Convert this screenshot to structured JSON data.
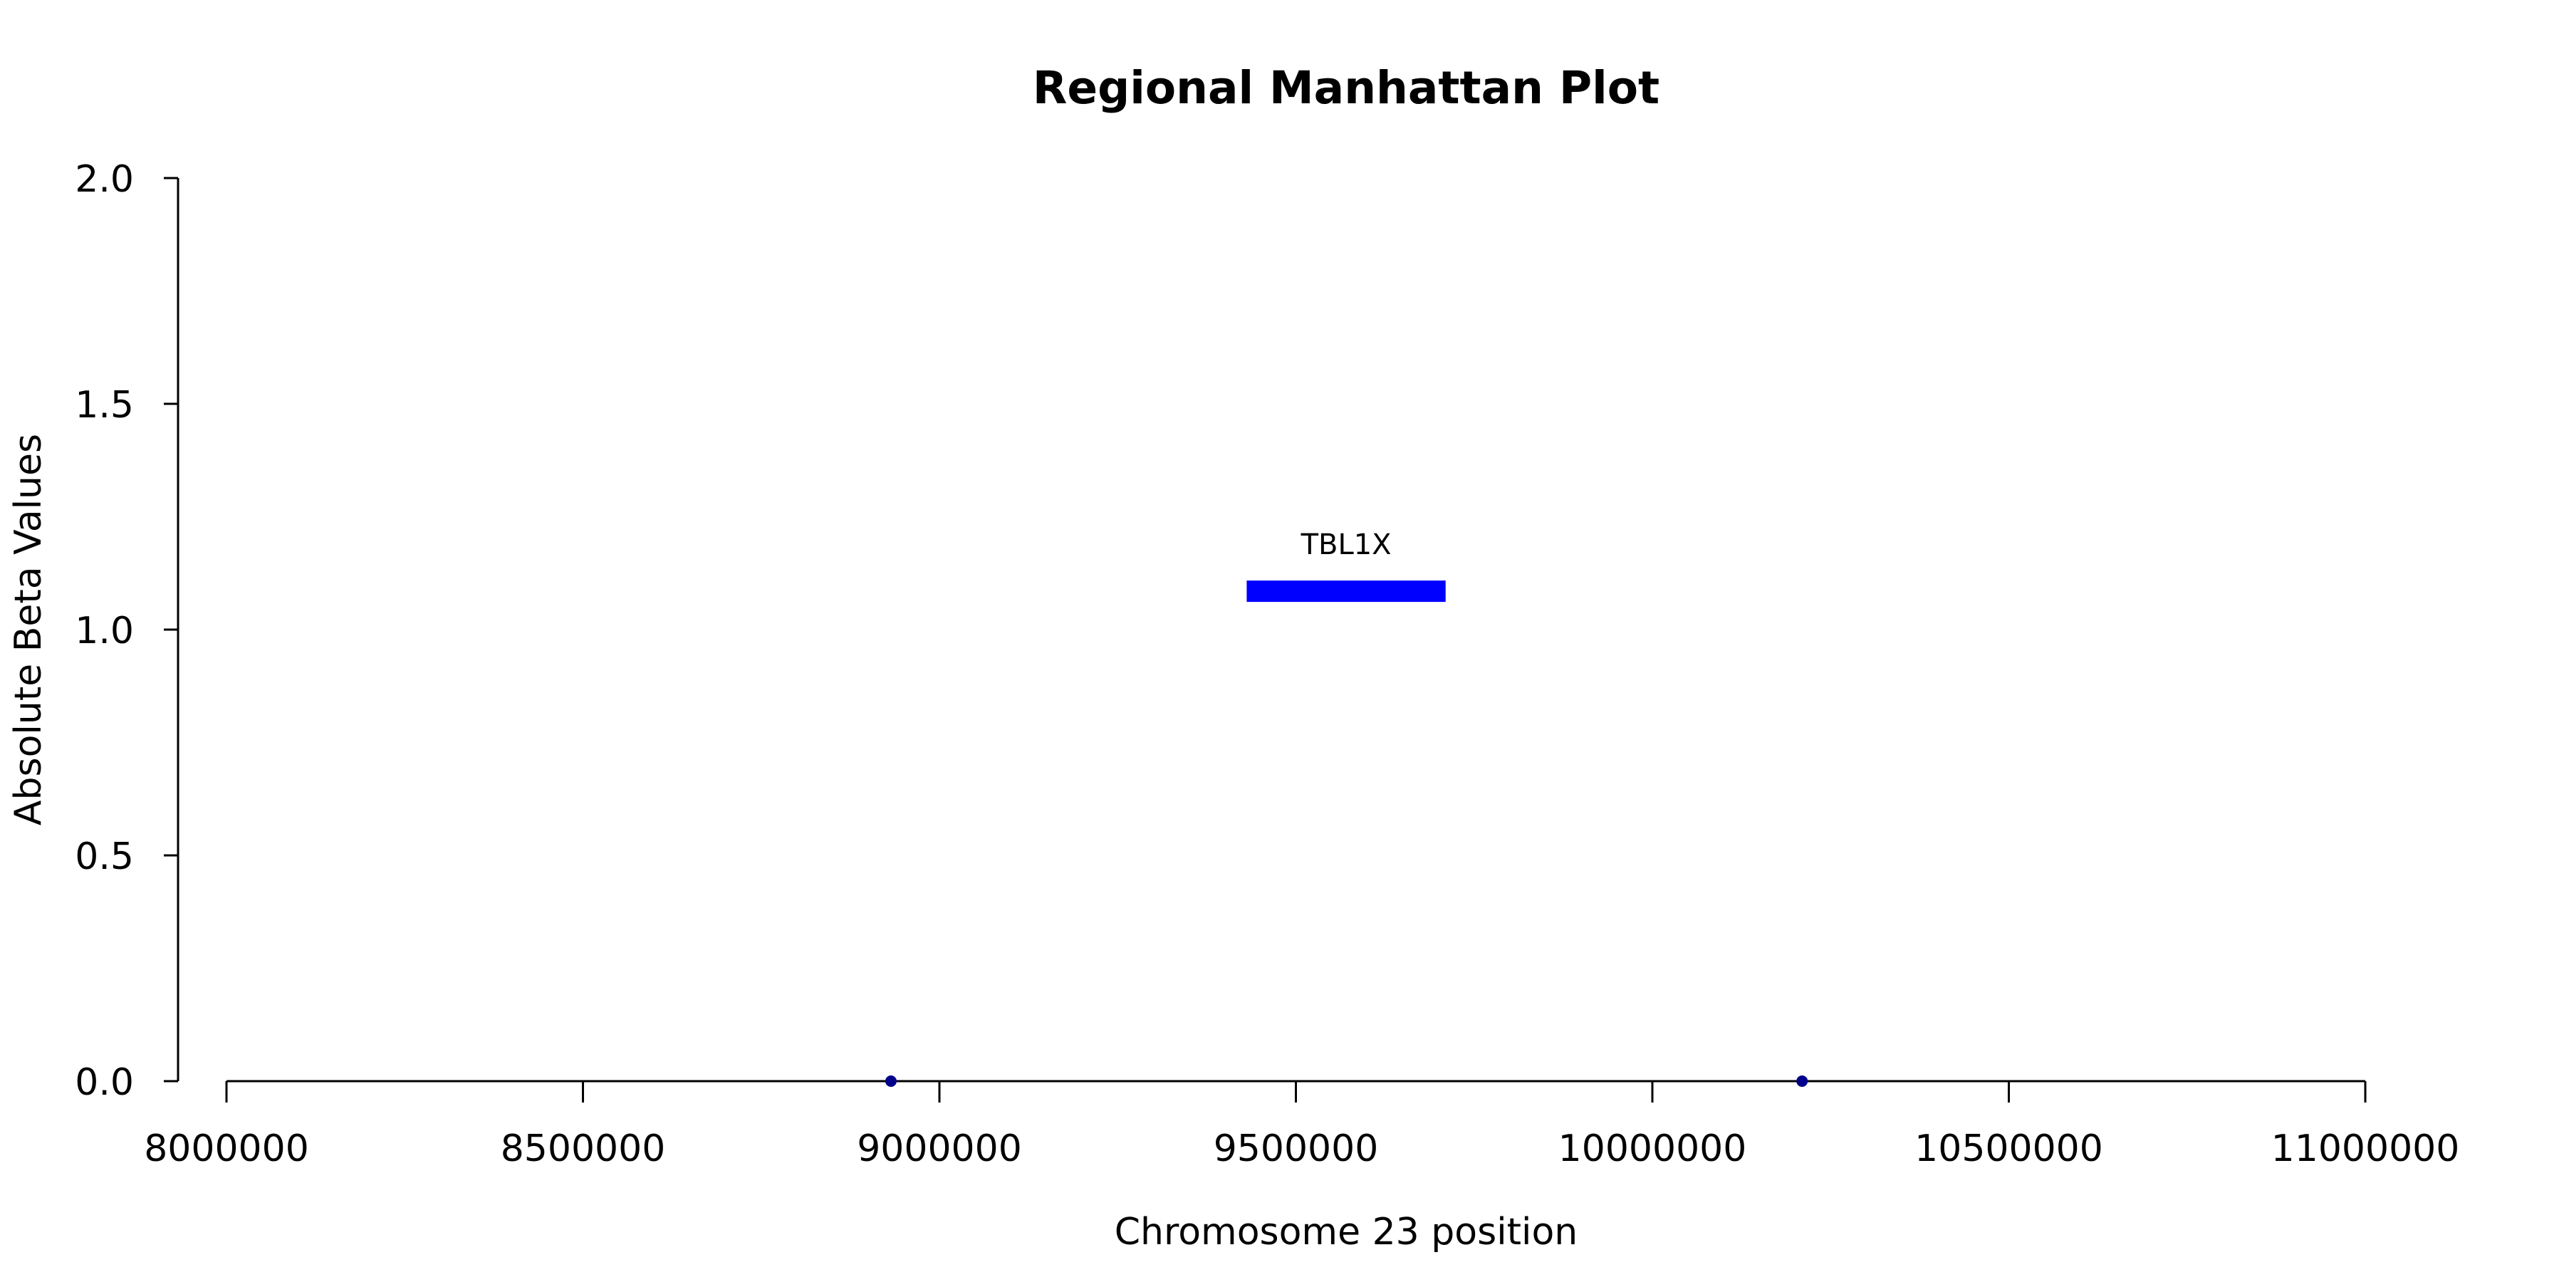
{
  "chart_data": {
    "type": "scatter",
    "title": "Regional Manhattan Plot",
    "xlabel": "Chromosome 23 position",
    "ylabel": "Absolute Beta Values",
    "xlim": [
      8000000,
      11000000
    ],
    "ylim": [
      0,
      2
    ],
    "xticks": [
      8000000,
      8500000,
      9000000,
      9500000,
      10000000,
      10500000,
      11000000
    ],
    "xtick_labels": [
      "8000000",
      "8500000",
      "9000000",
      "9500000",
      "10000000",
      "10500000",
      "11000000"
    ],
    "yticks": [
      0,
      0.5,
      1,
      1.5,
      2
    ],
    "ytick_labels": [
      "0.0",
      "0.5",
      "1.0",
      "1.5",
      "2.0"
    ],
    "grid": false,
    "series": [
      {
        "x": [
          8932000,
          10210000
        ],
        "y": [
          0,
          0
        ],
        "color": "#00008b"
      }
    ],
    "genes": [
      {
        "name": "TBL1X",
        "start": 9431000,
        "end": 9710000,
        "y": 1.085,
        "color": "#0000ff"
      }
    ]
  }
}
